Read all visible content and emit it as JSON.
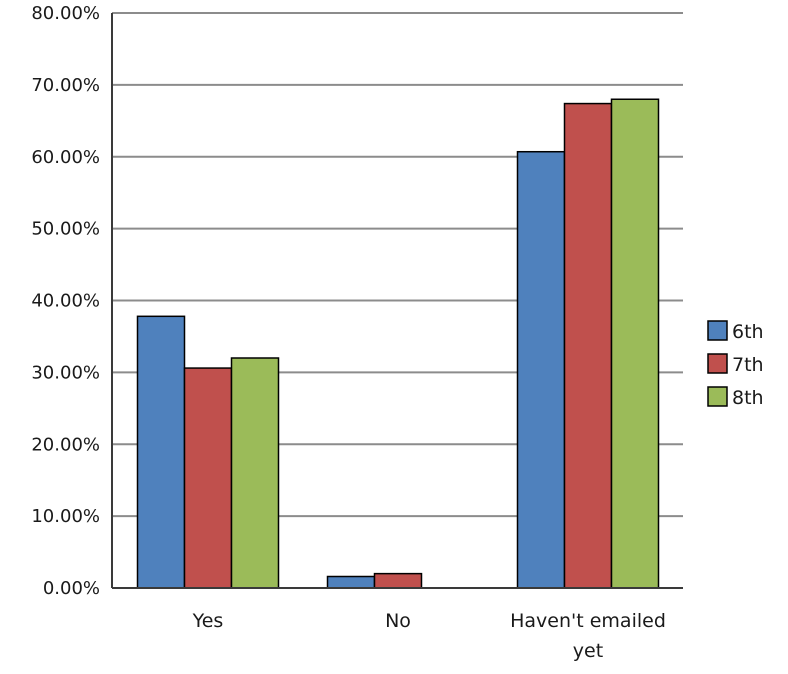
{
  "chart_data": {
    "type": "bar",
    "title": "",
    "xlabel": "",
    "ylabel": "",
    "categories": [
      "Yes",
      "No",
      "Haven't emailed yet"
    ],
    "series": [
      {
        "name": "6th",
        "values": [
          37.8,
          1.6,
          60.7
        ]
      },
      {
        "name": "7th",
        "values": [
          30.6,
          2.0,
          67.4
        ]
      },
      {
        "name": "8th",
        "values": [
          32.0,
          0.0,
          68.0
        ]
      }
    ],
    "ylim": [
      0,
      80
    ],
    "yticks": [
      "0.00%",
      "10.00%",
      "20.00%",
      "30.00%",
      "40.00%",
      "50.00%",
      "60.00%",
      "70.00%",
      "80.00%"
    ],
    "y_unit": "%",
    "grid": true,
    "legend_position": "right",
    "colors": {
      "6th": "#4f81bd",
      "7th": "#c0504d",
      "8th": "#9bbb59",
      "gridline": "#8c8c8c",
      "bar_outline": "#000000"
    }
  }
}
